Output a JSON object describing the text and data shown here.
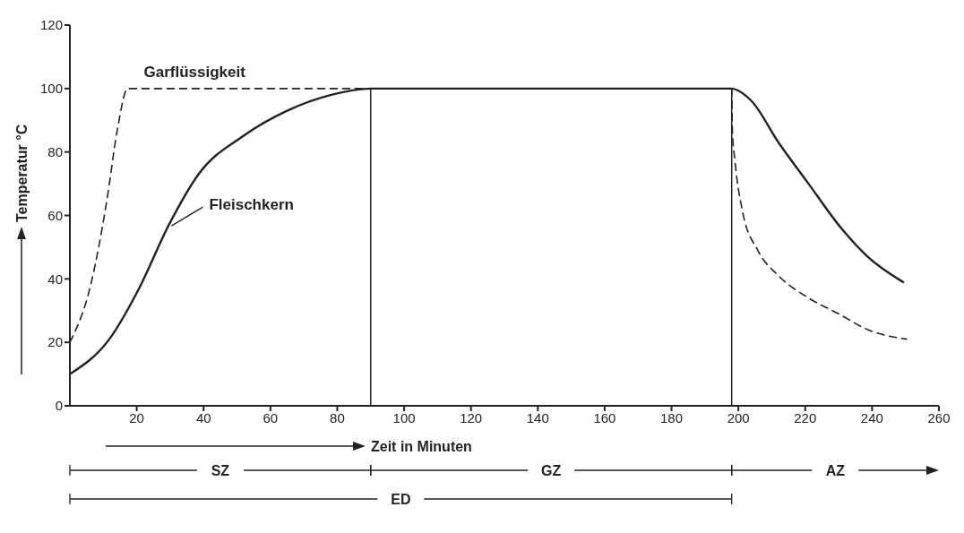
{
  "chart_data": {
    "type": "line",
    "xlabel": "Zeit in Minuten",
    "ylabel": "Temperatur °C",
    "xlim": [
      0,
      260
    ],
    "ylim": [
      0,
      120
    ],
    "xticks": [
      20,
      40,
      60,
      80,
      100,
      120,
      140,
      160,
      180,
      200,
      220,
      240,
      260
    ],
    "yticks": [
      0,
      20,
      40,
      60,
      80,
      100,
      120
    ],
    "marker": "none",
    "series": [
      {
        "name": "Garflüssigkeit",
        "color": "#222222",
        "line_style": "dashed",
        "x": [
          0,
          6.2,
          11.1,
          14.2,
          17.3,
          198,
          198.2,
          199,
          201.3,
          205.8,
          212,
          221,
          230,
          238.7,
          250.3
        ],
        "values": [
          20,
          38,
          65,
          87,
          100,
          100,
          87,
          77,
          61,
          49,
          41,
          34,
          29,
          24,
          21
        ]
      },
      {
        "name": "Fleischkern",
        "color": "#222222",
        "line_style": "solid",
        "x": [
          0,
          11.8,
          20.7,
          29.6,
          38.5,
          51.8,
          65,
          78.2,
          90,
          197.8,
          204,
          212,
          221,
          230,
          238.7,
          249.3
        ],
        "values": [
          10,
          21,
          37,
          57,
          73,
          85,
          93,
          98,
          100,
          100,
          96,
          83,
          70,
          57,
          47,
          39
        ]
      }
    ],
    "ref_lines": [
      {
        "axis": "x",
        "value": 90,
        "color": "#222222"
      },
      {
        "axis": "x",
        "value": 198,
        "color": "#222222"
      }
    ],
    "annotations": [
      "SZ",
      "GZ",
      "AZ",
      "ED"
    ]
  }
}
